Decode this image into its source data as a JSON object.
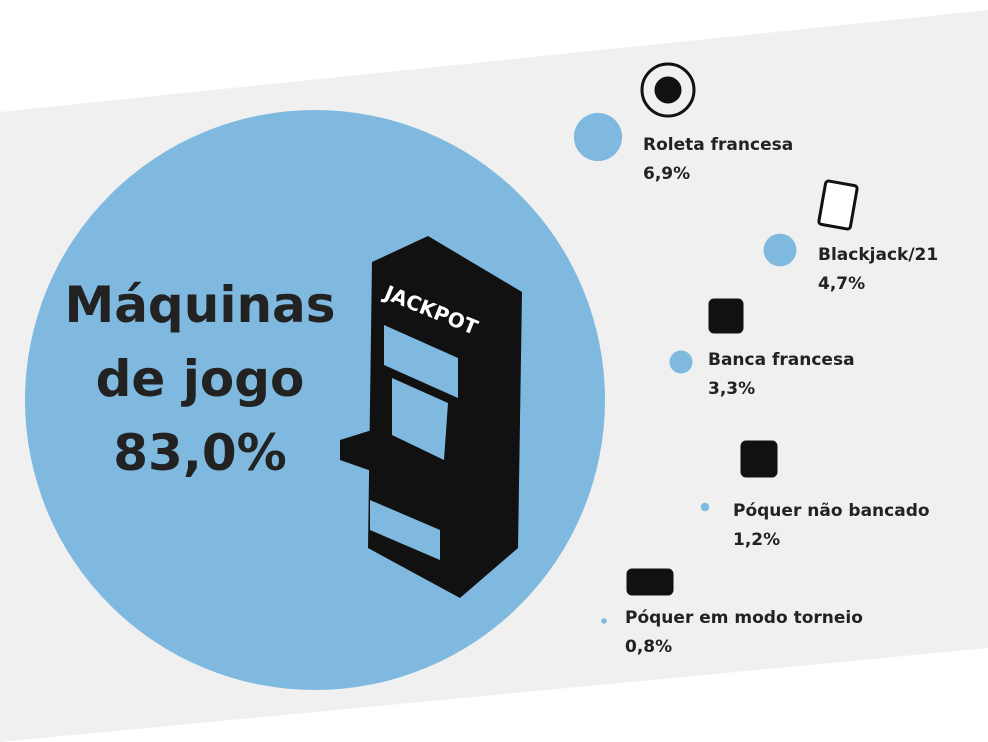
{
  "chart_data": {
    "type": "bubble",
    "categories": [
      "Máquinas de jogo",
      "Roleta francesa",
      "Blackjack/21",
      "Banca francesa",
      "Póquer não bancado",
      "Póquer em modo torneio"
    ],
    "values": [
      83.0,
      6.9,
      4.7,
      3.3,
      1.2,
      0.8
    ],
    "value_labels": [
      "83,0%",
      "6,9%",
      "4,7%",
      "3,3%",
      "1,2%",
      "0,8%"
    ],
    "color": "#7fb9df"
  }
}
